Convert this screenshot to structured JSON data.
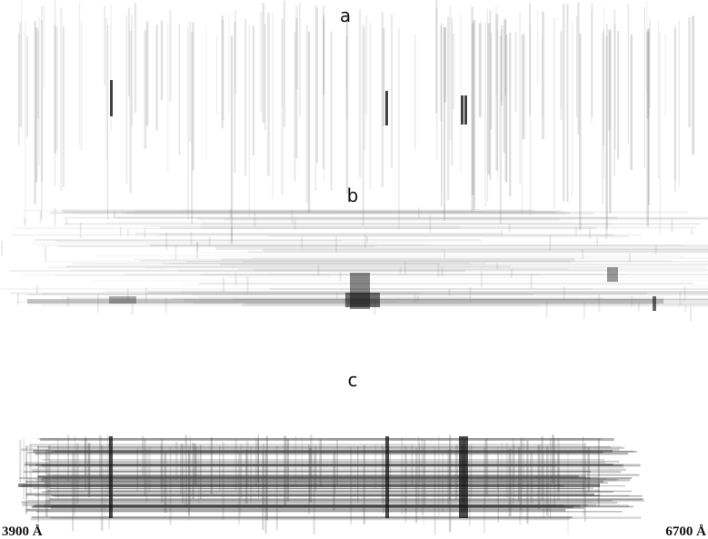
{
  "panels": [
    {
      "label": "a"
    },
    {
      "label": "b"
    },
    {
      "label": "c"
    }
  ],
  "wavelength_axis": {
    "start": "3900 Å",
    "end": "6700 Å"
  }
}
